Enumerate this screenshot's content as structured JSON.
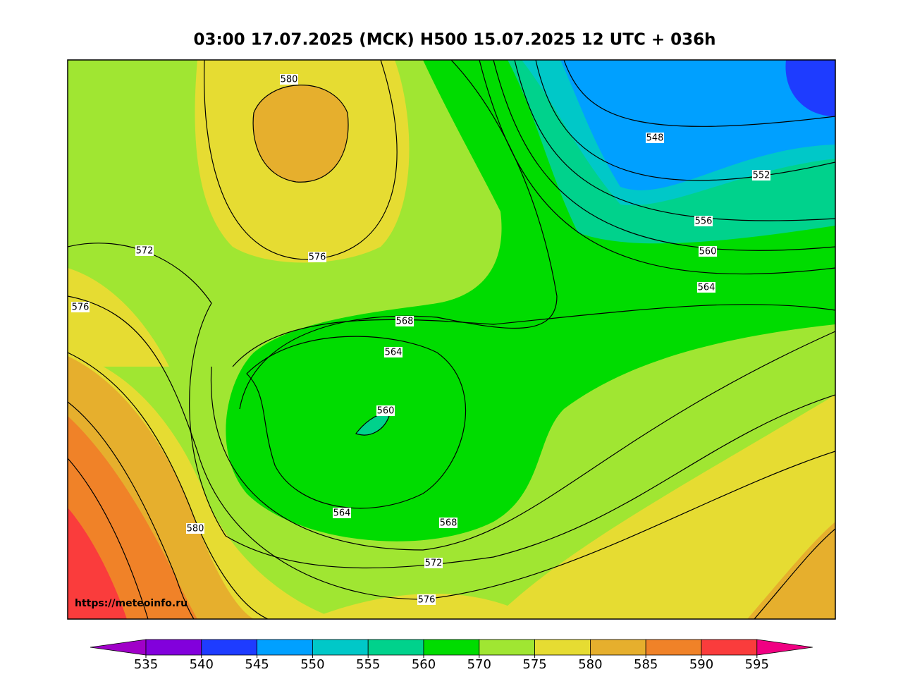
{
  "title": "03:00 17.07.2025 (MCK) H500  15.07.2025 12 UTC + 036h",
  "source": "https://meteoinfo.ru",
  "contour_labels": [
    580,
    548,
    552,
    556,
    560,
    564,
    572,
    576,
    576,
    568,
    564,
    560,
    564,
    568,
    580,
    572,
    576
  ],
  "colorbar": {
    "ticks": [
      535,
      540,
      545,
      550,
      555,
      560,
      570,
      575,
      580,
      585,
      590,
      595
    ],
    "under_color": "#a000c8",
    "colors": [
      "#8200dc",
      "#1e3cff",
      "#00a0ff",
      "#00c8c8",
      "#00d28c",
      "#00dc00",
      "#a0e632",
      "#e6dc32",
      "#e6af2d",
      "#f08228",
      "#fa3c3c"
    ],
    "over_color": "#f00082"
  }
}
